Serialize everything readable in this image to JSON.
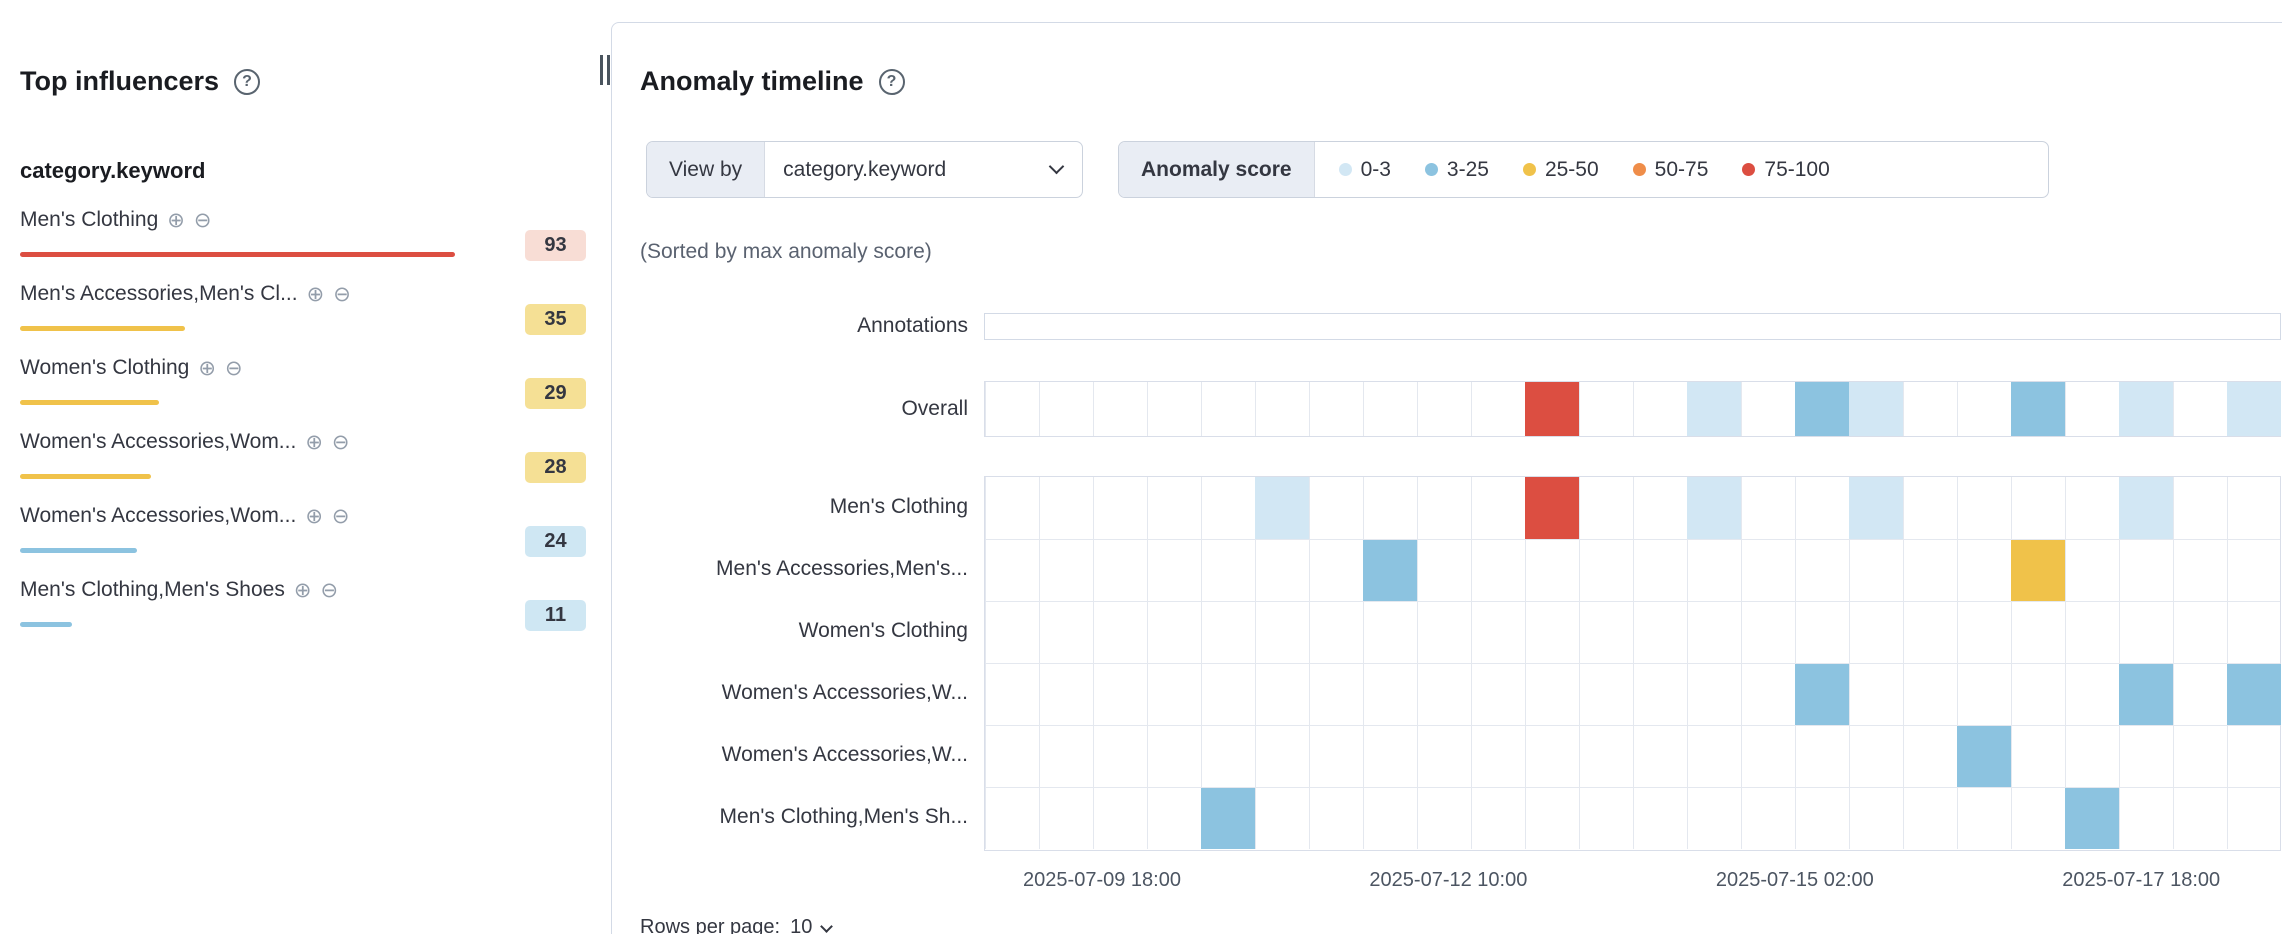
{
  "top_influencers": {
    "title": "Top influencers",
    "field_name": "category.keyword",
    "items": [
      {
        "name": "Men's Clothing",
        "score": "93",
        "severity": "critical",
        "bar_pct": 100
      },
      {
        "name": "Men's Accessories,Men's Cl...",
        "score": "35",
        "severity": "major",
        "bar_pct": 38
      },
      {
        "name": "Women's Clothing",
        "score": "29",
        "severity": "major",
        "bar_pct": 32
      },
      {
        "name": "Women's Accessories,Wom...",
        "score": "28",
        "severity": "major",
        "bar_pct": 30
      },
      {
        "name": "Women's Accessories,Wom...",
        "score": "24",
        "severity": "minor",
        "bar_pct": 27
      },
      {
        "name": "Men's Clothing,Men's Shoes",
        "score": "11",
        "severity": "minor",
        "bar_pct": 12
      }
    ]
  },
  "timeline": {
    "title": "Anomaly timeline",
    "view_by": {
      "label": "View by",
      "value": "category.keyword"
    },
    "legend": {
      "label": "Anomaly score",
      "items": [
        {
          "range": "0-3",
          "color": "#d2e7f4"
        },
        {
          "range": "3-25",
          "color": "#8cc3e0"
        },
        {
          "range": "25-50",
          "color": "#f0c24a"
        },
        {
          "range": "50-75",
          "color": "#ef8d49"
        },
        {
          "range": "75-100",
          "color": "#dc4e41"
        }
      ]
    },
    "sorted_note": "(Sorted by max anomaly score)",
    "swimlane": {
      "annotations_label": "Annotations",
      "overall": {
        "label": "Overall",
        "cells": [
          [
            10,
            4
          ],
          [
            13,
            0
          ],
          [
            15,
            1
          ],
          [
            16,
            0
          ],
          [
            19,
            1
          ],
          [
            21,
            0
          ],
          [
            23,
            0
          ]
        ]
      },
      "view_by_lanes": [
        {
          "label": "Men's Clothing",
          "cells": [
            [
              5,
              0
            ],
            [
              10,
              4
            ],
            [
              13,
              0
            ],
            [
              16,
              0
            ],
            [
              21,
              0
            ]
          ]
        },
        {
          "label": "Men's Accessories,Men's...",
          "cells": [
            [
              7,
              1
            ],
            [
              19,
              2
            ]
          ]
        },
        {
          "label": "Women's Clothing",
          "cells": []
        },
        {
          "label": "Women's Accessories,W...",
          "cells": [
            [
              15,
              1
            ],
            [
              21,
              1
            ],
            [
              23,
              1
            ]
          ]
        },
        {
          "label": "Women's Accessories,W...",
          "cells": [
            [
              18,
              1
            ]
          ]
        },
        {
          "label": "Men's Clothing,Men's Sh...",
          "cells": [
            [
              4,
              1
            ],
            [
              20,
              1
            ]
          ]
        }
      ],
      "x_axis_labels": [
        "2025-07-09 18:00",
        "2025-07-12 10:00",
        "2025-07-15 02:00",
        "2025-07-17 18:00"
      ]
    },
    "pagination": {
      "label": "Rows per page:",
      "value": "10"
    }
  },
  "severity_colors": {
    "0": "#d2e7f4",
    "1": "#8cc3e0",
    "2": "#f0c24a",
    "3": "#ef8d49",
    "4": "#dc4e41"
  }
}
